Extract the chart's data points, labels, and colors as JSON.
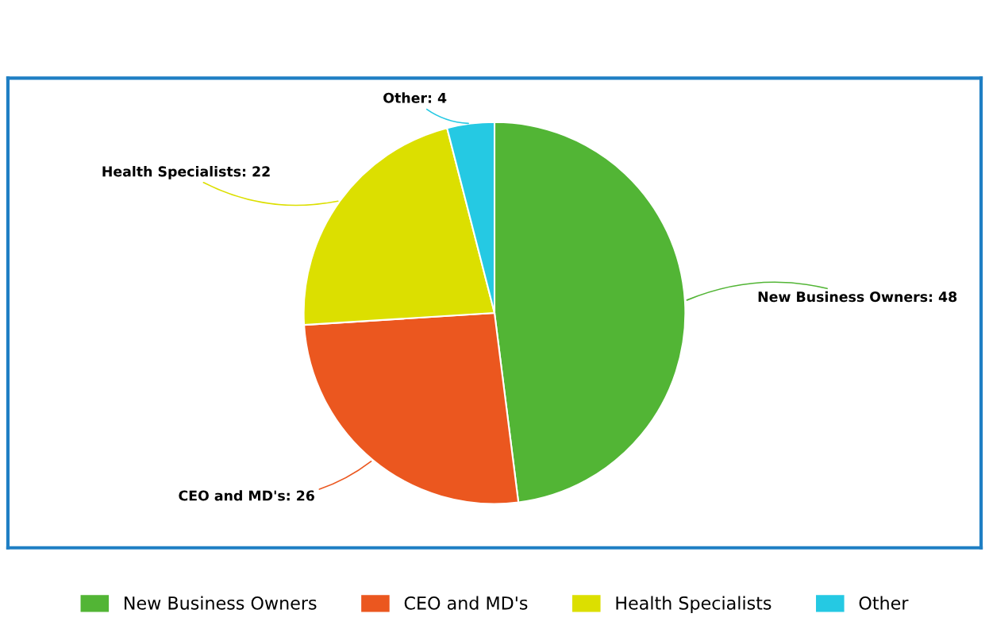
{
  "chart_data": {
    "type": "pie",
    "categories": [
      "New Business Owners",
      "CEO and MD's",
      "Health Specialists",
      "Other"
    ],
    "values": [
      48,
      26,
      22,
      4
    ],
    "colors": [
      "#52b535",
      "#eb571f",
      "#dcdf00",
      "#25c9e3"
    ],
    "value_labels": [
      "New Business Owners: 48",
      "CEO and MD's: 26",
      "Health Specialists: 22",
      "Other: 4"
    ],
    "legend": "bottom"
  }
}
